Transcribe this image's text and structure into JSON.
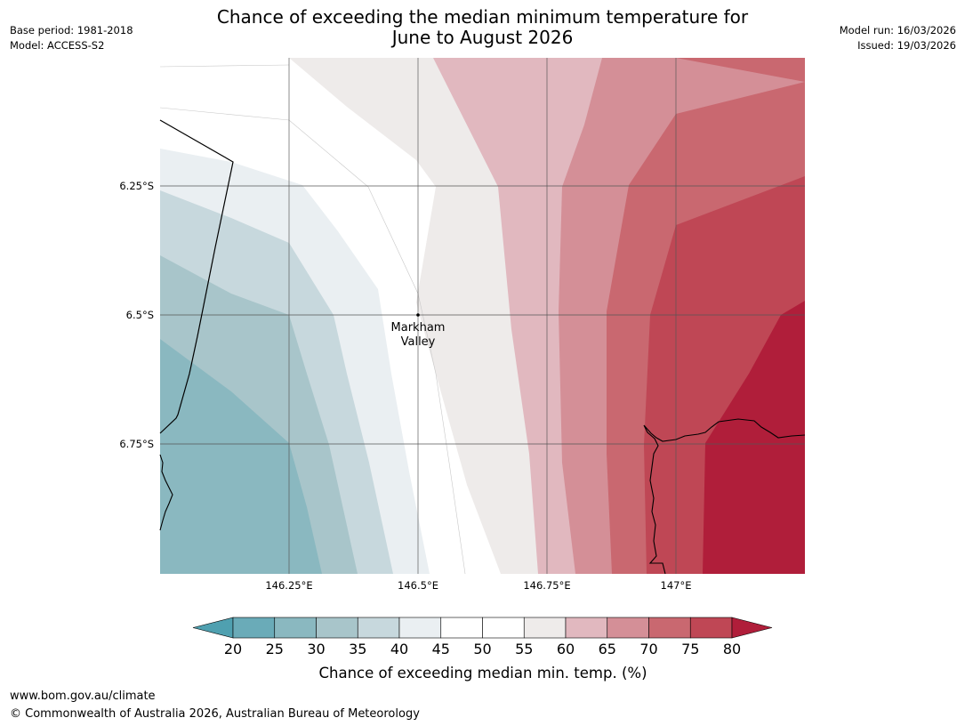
{
  "title": {
    "line1": "Chance of exceeding the median minimum temperature for",
    "line2": "June to August 2026"
  },
  "meta": {
    "base_period": "Base period: 1981-2018",
    "model": "Model: ACCESS-S2",
    "model_run": "Model run: 16/03/2026",
    "issued": "Issued: 19/03/2026"
  },
  "map": {
    "location": {
      "name_line1": "Markham",
      "name_line2": "Valley",
      "lon": 146.5,
      "lat": -6.5
    },
    "lat_ticks": [
      "6.25°S",
      "6.5°S",
      "6.75°S"
    ],
    "lon_ticks": [
      "146.25°E",
      "146.5°E",
      "146.75°E",
      "147°E"
    ],
    "extent": {
      "lon_min": 146.0,
      "lon_max": 147.25,
      "lat_min": -7.0,
      "lat_max": -6.0
    }
  },
  "colorbar": {
    "label": "Chance of exceeding median min. temp. (%)",
    "ticks": [
      "20",
      "25",
      "30",
      "35",
      "40",
      "45",
      "50",
      "55",
      "60",
      "65",
      "70",
      "75",
      "80"
    ],
    "colors": [
      "#4fa0b0",
      "#6aabb8",
      "#8ab8c0",
      "#a8c5ca",
      "#c7d8dd",
      "#eaeff2",
      "#ffffff",
      "#ffffff",
      "#eeebea",
      "#e1b8bf",
      "#d48f97",
      "#c96870",
      "#bf4755",
      "#b01e3a"
    ]
  },
  "footer": {
    "url": "www.bom.gov.au/climate",
    "copyright": "© Commonwealth of Australia 2026, Australian Bureau of Meteorology"
  }
}
